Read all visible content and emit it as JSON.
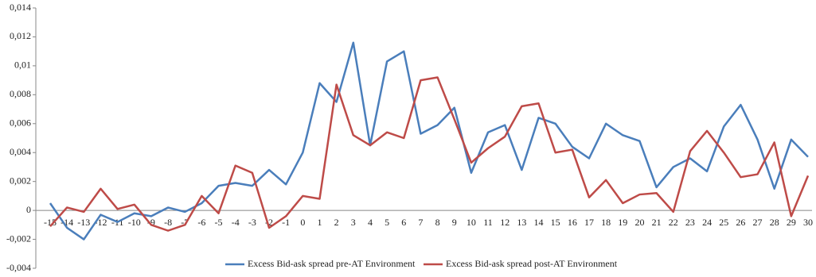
{
  "chart_data": {
    "type": "line",
    "categories": [
      "-15",
      "-14",
      "-13",
      "-12",
      "-11",
      "-10",
      "-9",
      "-8",
      "-7",
      "-6",
      "-5",
      "-4",
      "-3",
      "-2",
      "-1",
      "0",
      "1",
      "2",
      "3",
      "4",
      "5",
      "6",
      "7",
      "8",
      "9",
      "10",
      "11",
      "12",
      "13",
      "14",
      "15",
      "16",
      "17",
      "18",
      "19",
      "20",
      "21",
      "22",
      "23",
      "24",
      "25",
      "26",
      "27",
      "28",
      "29",
      "30"
    ],
    "series": [
      {
        "name": "Excess Bid-ask spread pre-AT Environment",
        "color": "#4a7ebb",
        "values": [
          0.0005,
          -0.0012,
          -0.002,
          -0.0003,
          -0.0008,
          -0.0002,
          -0.0004,
          0.0002,
          -0.0001,
          0.0005,
          0.0017,
          0.0019,
          0.0017,
          0.0028,
          0.0018,
          0.004,
          0.0088,
          0.0075,
          0.0116,
          0.0045,
          0.0103,
          0.011,
          0.0053,
          0.0059,
          0.0071,
          0.0026,
          0.0054,
          0.0059,
          0.0028,
          0.0064,
          0.006,
          0.0044,
          0.0036,
          0.006,
          0.0052,
          0.0048,
          0.0016,
          0.003,
          0.0036,
          0.0027,
          0.0058,
          0.0073,
          0.0049,
          0.0015,
          0.0049,
          0.0037
        ]
      },
      {
        "name": "Excess Bid-ask spread post-AT Environment",
        "color": "#be4b48",
        "values": [
          -0.0011,
          0.0002,
          -0.0001,
          0.0015,
          0.0001,
          0.0004,
          -0.001,
          -0.0014,
          -0.001,
          0.001,
          -0.0002,
          0.0031,
          0.0026,
          -0.0012,
          -0.0004,
          0.001,
          0.0008,
          0.0087,
          0.0052,
          0.0045,
          0.0054,
          0.005,
          0.009,
          0.0092,
          0.0063,
          0.0033,
          0.0043,
          0.0051,
          0.0072,
          0.0074,
          0.004,
          0.0042,
          0.0009,
          0.0021,
          0.0005,
          0.0011,
          0.0012,
          -0.0001,
          0.0041,
          0.0055,
          0.004,
          0.0023,
          0.0025,
          0.0047,
          -0.0004,
          0.0024
        ]
      }
    ],
    "ylim": [
      -0.004,
      0.014
    ],
    "yticks": [
      {
        "value": -0.004,
        "label": "-0,004"
      },
      {
        "value": -0.002,
        "label": "-0,002"
      },
      0,
      {
        "value": 0.002,
        "label": "0,002"
      },
      {
        "value": 0.004,
        "label": "0,004"
      },
      {
        "value": 0.006,
        "label": "0,006"
      },
      {
        "value": 0.008,
        "label": "0,008"
      },
      {
        "value": 0.01,
        "label": "0,01"
      },
      {
        "value": 0.012,
        "label": "0,012"
      },
      {
        "value": 0.014,
        "label": "0,014"
      }
    ],
    "legend": "bottom"
  }
}
